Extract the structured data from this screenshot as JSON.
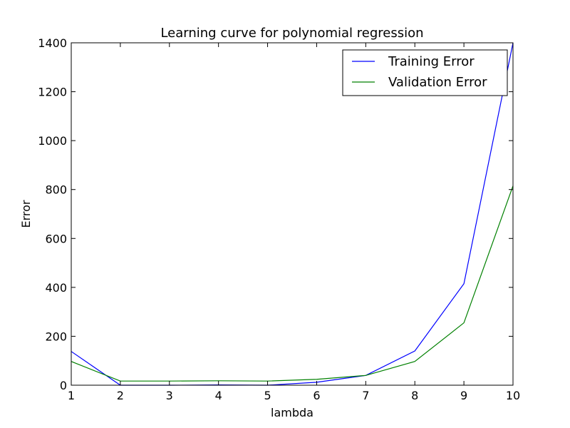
{
  "chart_data": {
    "type": "line",
    "title": "Learning curve for polynomial regression",
    "xlabel": "lambda",
    "ylabel": "Error",
    "xlim": [
      1,
      10
    ],
    "ylim": [
      0,
      1400
    ],
    "xticks": [
      1,
      2,
      3,
      4,
      5,
      6,
      7,
      8,
      9,
      10
    ],
    "yticks": [
      0,
      200,
      400,
      600,
      800,
      1000,
      1200,
      1400
    ],
    "x": [
      1,
      2,
      3,
      4,
      5,
      6,
      7,
      8,
      9,
      10
    ],
    "series": [
      {
        "name": "Training Error",
        "color": "#0000ff",
        "values": [
          138,
          0,
          0,
          1,
          0,
          12,
          40,
          140,
          415,
          1400
        ]
      },
      {
        "name": "Validation Error",
        "color": "#008000",
        "values": [
          97,
          17,
          17,
          18,
          17,
          24,
          40,
          97,
          255,
          815
        ]
      }
    ],
    "legend": "top-right",
    "grid": false
  }
}
